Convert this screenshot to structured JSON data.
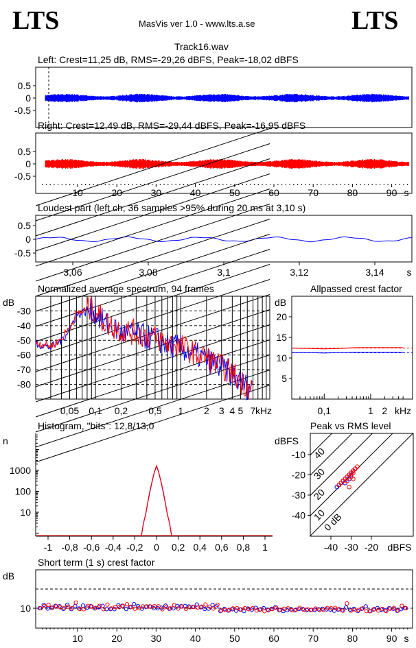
{
  "header": {
    "logo_left": "LTS",
    "logo_right": "LTS",
    "app_title": "MasVis ver 1.0 - www.lts.a.se",
    "file_title": "Track16.wav"
  },
  "colors": {
    "left": "#0000ff",
    "right": "#ff0000",
    "axis": "#000000"
  },
  "charts": {
    "left_waveform": {
      "title": "Left: Crest=11,25 dB, RMS=-29,26 dBFS, Peak=-18,02 dBFS",
      "yticks": [
        "0.5",
        "0",
        "-0.5"
      ]
    },
    "right_waveform": {
      "title": "Right: Crest=12,49 dB, RMS=-29,44 dBFS, Peak=-16,95 dBFS",
      "yticks": [
        "0.5",
        "0",
        "-0.5"
      ]
    },
    "time_axis": {
      "ticks": [
        "10",
        "20",
        "30",
        "40",
        "50",
        "60",
        "70",
        "80",
        "90"
      ],
      "unit": "s"
    },
    "loudest": {
      "title": "Loudest part (left  ch, 36 samples >95% during 20 ms at 3,10 s)",
      "yticks": [
        "0.5",
        "0",
        "-0.5"
      ],
      "xticks": [
        "3,06",
        "3,08",
        "3,1",
        "3,12",
        "3,14"
      ],
      "unit": "s"
    },
    "spectrum": {
      "title": "Normalized average spectrum, 94 frames",
      "ylabel": "dB",
      "yticks": [
        "-30",
        "-40",
        "-50",
        "-60",
        "-70",
        "-80"
      ],
      "xticks": [
        "0,05",
        "0,1",
        "0,2",
        "0,5",
        "1",
        "2",
        "3",
        "4",
        "5",
        "7"
      ],
      "xunit": "kHz"
    },
    "crest_allpass": {
      "title": "Allpassed crest factor",
      "ylabel": "dB",
      "yticks": [
        "20",
        "15",
        "10",
        "5"
      ],
      "xticks": [
        "0,1",
        "1",
        "2"
      ],
      "xunit": "kHz"
    },
    "histogram": {
      "title": "Histogram, \"bits\": 12,8/13,0",
      "ylabel": "n",
      "yticks": [
        "1000",
        "100",
        "10"
      ],
      "xticks": [
        "-1",
        "-0,8",
        "-0,6",
        "-0,4",
        "-0,2",
        "0",
        "0,2",
        "0,4",
        "0,6",
        "0,8",
        "1"
      ]
    },
    "peak_rms": {
      "title": "Peak vs RMS level",
      "ylabel": "dBFS",
      "yticks": [
        "-10",
        "-20",
        "-30",
        "-40"
      ],
      "xticks": [
        "-40",
        "-30",
        "-20"
      ],
      "xunit": "dBFS",
      "diag_labels": [
        "40",
        "30",
        "20",
        "10",
        "0 dB"
      ]
    },
    "short_crest": {
      "title": "Short term (1 s) crest factor",
      "ylabel": "dB",
      "yticks": [
        "10"
      ],
      "xticks": [
        "10",
        "20",
        "30",
        "40",
        "50",
        "60",
        "70",
        "80",
        "90"
      ],
      "unit": "s"
    }
  },
  "chart_data": [
    {
      "type": "line",
      "title": "Left: Crest=11,25 dB, RMS=-29,26 dBFS, Peak=-18,02 dBFS",
      "ylim": [
        -1,
        1
      ],
      "xlim": [
        0,
        96
      ],
      "series": [
        {
          "name": "Left",
          "envelope": 0.07
        }
      ]
    },
    {
      "type": "line",
      "title": "Right: Crest=12,49 dB, RMS=-29,44 dBFS, Peak=-16,95 dBFS",
      "ylim": [
        -1,
        1
      ],
      "xlim": [
        0,
        96
      ],
      "series": [
        {
          "name": "Right",
          "envelope": 0.08
        }
      ]
    },
    {
      "type": "line",
      "title": "Loudest part (left  ch, 36 samples >95% during 20 ms at 3,10 s)",
      "xlim": [
        3.053,
        3.153
      ],
      "ylim": [
        -1,
        1
      ],
      "series": [
        {
          "name": "Left",
          "amplitude": 0.03
        }
      ]
    },
    {
      "type": "line",
      "title": "Normalized average spectrum, 94 frames",
      "ylabel": "dB",
      "xlabel": "kHz",
      "ylim": [
        -90,
        -20
      ],
      "x": [
        0.02,
        0.03,
        0.04,
        0.05,
        0.06,
        0.08,
        0.1,
        0.12,
        0.15,
        0.2,
        0.3,
        0.4,
        0.5,
        0.7,
        1,
        1.5,
        2,
        3,
        4,
        5,
        7
      ],
      "series": [
        {
          "name": "Left",
          "values": [
            -52,
            -55,
            -50,
            -42,
            -33,
            -30,
            -30,
            -37,
            -41,
            -45,
            -46,
            -48,
            -49,
            -53,
            -55,
            -60,
            -63,
            -69,
            -73,
            -79,
            -84
          ]
        },
        {
          "name": "Right",
          "values": [
            -51,
            -54,
            -49,
            -41,
            -32,
            -29,
            -29,
            -36,
            -40,
            -43,
            -45,
            -47,
            -48,
            -52,
            -54,
            -59,
            -62,
            -68,
            -72,
            -78,
            -83
          ]
        }
      ]
    },
    {
      "type": "line",
      "title": "Allpassed crest factor",
      "ylabel": "dB",
      "xlabel": "kHz",
      "ylim": [
        0,
        25
      ],
      "x": [
        0.02,
        0.05,
        0.1,
        0.2,
        0.5,
        1,
        2,
        5
      ],
      "series": [
        {
          "name": "Left",
          "values": [
            11.3,
            11.3,
            11.2,
            11.3,
            11.4,
            11.4,
            11.4,
            11.4
          ]
        },
        {
          "name": "Right",
          "values": [
            12.4,
            12.3,
            12.2,
            12.3,
            12.5,
            12.5,
            12.5,
            12.5
          ]
        }
      ]
    },
    {
      "type": "line",
      "title": "Histogram, \"bits\": 12,8/13,0",
      "ylabel": "n",
      "x": [
        -0.14,
        -0.12,
        -0.1,
        -0.08,
        -0.06,
        -0.04,
        -0.02,
        0,
        0.02,
        0.04,
        0.06,
        0.08,
        0.1,
        0.12,
        0.14
      ],
      "series": [
        {
          "name": "Left",
          "values": [
            1,
            3,
            8,
            30,
            100,
            300,
            800,
            1600,
            800,
            300,
            100,
            30,
            8,
            3,
            1
          ]
        },
        {
          "name": "Right",
          "values": [
            1,
            3,
            8,
            32,
            110,
            320,
            820,
            1700,
            820,
            320,
            110,
            32,
            8,
            3,
            1
          ]
        }
      ]
    },
    {
      "type": "scatter",
      "title": "Peak vs RMS level",
      "xlabel": "dBFS",
      "ylabel": "dBFS",
      "xlim": [
        -50,
        -10
      ],
      "ylim": [
        -50,
        0
      ],
      "series": [
        {
          "name": "Left",
          "x": [
            -37,
            -36,
            -35,
            -34,
            -33,
            -32,
            -31,
            -30,
            -29,
            -28,
            -33,
            -31,
            -30
          ],
          "y": [
            -26,
            -25,
            -24,
            -23,
            -22,
            -21,
            -20,
            -19,
            -18,
            -17,
            -24,
            -22,
            -20
          ]
        },
        {
          "name": "Right",
          "x": [
            -36,
            -35,
            -34,
            -33,
            -32,
            -31,
            -30,
            -29,
            -28,
            -27,
            -32,
            -30,
            -29,
            -31,
            -29
          ],
          "y": [
            -25,
            -24,
            -23,
            -22,
            -21,
            -20,
            -19,
            -18,
            -17,
            -16,
            -23,
            -21,
            -19,
            -26,
            -22
          ]
        }
      ]
    },
    {
      "type": "scatter",
      "title": "Short term (1 s) crest factor",
      "ylabel": "dB",
      "xlim": [
        0,
        96
      ],
      "ylim": [
        0,
        20
      ],
      "series": [
        {
          "name": "Left",
          "values": [
            10,
            11,
            10,
            10,
            11,
            10,
            10,
            11,
            10,
            10,
            10,
            11,
            10,
            10,
            10,
            10,
            11,
            10,
            10,
            10,
            11,
            10,
            10,
            10,
            11,
            10,
            10,
            10,
            10,
            10,
            10,
            10,
            11,
            10,
            10,
            10,
            10,
            10,
            10,
            10,
            11,
            10,
            10,
            10,
            11,
            10,
            8,
            9,
            9,
            9,
            9,
            9,
            9,
            9,
            9,
            9,
            9,
            9,
            9,
            9,
            10,
            9,
            9,
            9,
            9,
            9,
            9,
            9,
            9,
            9,
            9,
            9,
            9,
            9,
            9,
            9,
            9,
            9,
            10,
            9,
            9,
            9,
            9,
            10,
            9,
            9,
            9,
            9,
            9,
            9,
            9,
            9,
            10,
            9
          ]
        },
        {
          "name": "Right",
          "values": [
            10,
            10,
            11,
            10,
            11,
            10,
            10,
            10,
            10,
            12,
            10,
            10,
            10,
            11,
            10,
            10,
            10,
            11,
            10,
            10,
            10,
            10,
            11,
            10,
            10,
            10,
            10,
            10,
            11,
            10,
            10,
            10,
            10,
            10,
            11,
            10,
            10,
            10,
            10,
            11,
            10,
            10,
            11,
            10,
            10,
            11,
            8,
            9,
            9,
            9,
            9,
            9,
            9,
            9,
            10,
            9,
            9,
            9,
            9,
            9,
            9,
            9,
            9,
            10,
            9,
            9,
            9,
            9,
            9,
            9,
            9,
            9,
            9,
            9,
            9,
            9,
            9,
            9,
            12,
            9,
            9,
            9,
            10,
            9,
            9,
            9,
            9,
            9,
            9,
            9,
            9,
            9,
            11,
            9
          ]
        }
      ]
    }
  ]
}
